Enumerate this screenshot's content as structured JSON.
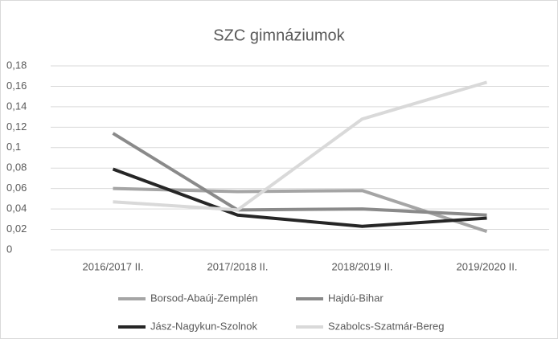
{
  "chart_data": {
    "type": "line",
    "title": "SZC gimnáziumok",
    "categories": [
      "2016/2017 II.",
      "2017/2018 II.",
      "2018/2019 II.",
      "2019/2020 II."
    ],
    "series": [
      {
        "name": "Borsod-Abaúj-Zemplén",
        "color": "#a5a5a5",
        "values": [
          0.06,
          0.057,
          0.058,
          0.018
        ]
      },
      {
        "name": "Hajdú-Bihar",
        "color": "#8a8a8a",
        "values": [
          0.114,
          0.039,
          0.04,
          0.034
        ]
      },
      {
        "name": "Jász-Nagykun-Szolnok",
        "color": "#262626",
        "values": [
          0.079,
          0.034,
          0.023,
          0.031
        ]
      },
      {
        "name": "Szabolcs-Szatmár-Bereg",
        "color": "#d9d9d9",
        "values": [
          0.047,
          0.039,
          0.128,
          0.164
        ]
      }
    ],
    "ylim": [
      0,
      0.18
    ],
    "yticks": [
      0,
      {
        "value": 0.02,
        "label": "0,02"
      },
      {
        "value": 0.04,
        "label": "0,04"
      },
      {
        "value": 0.06,
        "label": "0,06"
      },
      {
        "value": 0.08,
        "label": "0,08"
      },
      {
        "value": 0.1,
        "label": "0,1"
      },
      {
        "value": 0.12,
        "label": "0,12"
      },
      {
        "value": 0.14,
        "label": "0,14"
      },
      {
        "value": 0.16,
        "label": "0,16"
      },
      {
        "value": 0.18,
        "label": "0,18"
      }
    ],
    "grid": true
  }
}
